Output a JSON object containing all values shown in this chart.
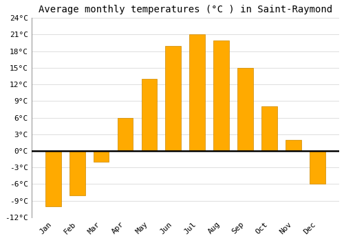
{
  "title": "Average monthly temperatures (°C ) in Saint-Raymond",
  "months": [
    "Jan",
    "Feb",
    "Mar",
    "Apr",
    "May",
    "Jun",
    "Jul",
    "Aug",
    "Sep",
    "Oct",
    "Nov",
    "Dec"
  ],
  "values": [
    -10,
    -8,
    -2,
    6,
    13,
    19,
    21,
    20,
    15,
    8,
    2,
    -6
  ],
  "bar_color": "#FFAA00",
  "bar_edge_color": "#CC8800",
  "background_color": "#FFFFFF",
  "grid_color": "#DDDDDD",
  "ylim": [
    -12,
    24
  ],
  "yticks": [
    -12,
    -9,
    -6,
    -3,
    0,
    3,
    6,
    9,
    12,
    15,
    18,
    21,
    24
  ],
  "ytick_labels": [
    "-12°C",
    "-9°C",
    "-6°C",
    "-3°C",
    "0°C",
    "3°C",
    "6°C",
    "9°C",
    "12°C",
    "15°C",
    "18°C",
    "21°C",
    "24°C"
  ],
  "title_fontsize": 10,
  "tick_fontsize": 8,
  "font_family": "monospace",
  "bar_width": 0.65
}
